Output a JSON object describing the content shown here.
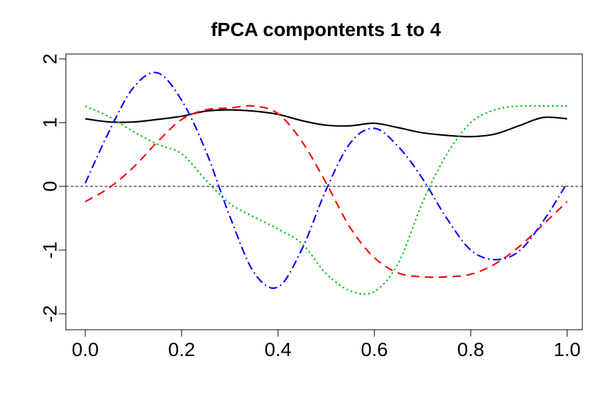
{
  "chart_data": {
    "type": "line",
    "title": "fPCA compontents 1 to 4",
    "xlabel": "",
    "ylabel": "",
    "xlim": [
      0.0,
      1.0
    ],
    "ylim": [
      -2,
      2
    ],
    "x_ticks": [
      "0.0",
      "0.2",
      "0.4",
      "0.6",
      "0.8",
      "1.0"
    ],
    "y_ticks": [
      "-2",
      "-1",
      "0",
      "1",
      "2"
    ],
    "reference_line": {
      "y": 0,
      "style": "dashed",
      "color": "#000000"
    },
    "grid": false,
    "legend": "none",
    "x": [
      0.0,
      0.05,
      0.1,
      0.15,
      0.2,
      0.25,
      0.3,
      0.35,
      0.4,
      0.45,
      0.5,
      0.55,
      0.6,
      0.65,
      0.7,
      0.75,
      0.8,
      0.85,
      0.9,
      0.95,
      1.0
    ],
    "series": [
      {
        "color": "#000000",
        "dash": "solid",
        "values": [
          1.06,
          1.01,
          1.01,
          1.05,
          1.1,
          1.18,
          1.2,
          1.18,
          1.13,
          1.03,
          0.96,
          0.95,
          0.99,
          0.92,
          0.84,
          0.8,
          0.78,
          0.82,
          0.95,
          1.08,
          1.06
        ]
      },
      {
        "color": "#ff0000",
        "dash": "dashed",
        "values": [
          -0.24,
          -0.02,
          0.3,
          0.7,
          1.05,
          1.2,
          1.23,
          1.26,
          1.14,
          0.7,
          0.05,
          -0.65,
          -1.12,
          -1.36,
          -1.42,
          -1.42,
          -1.38,
          -1.22,
          -0.95,
          -0.6,
          -0.24
        ]
      },
      {
        "color": "#00c000",
        "dash": "dotted",
        "values": [
          1.26,
          1.09,
          0.86,
          0.66,
          0.51,
          0.1,
          -0.27,
          -0.48,
          -0.67,
          -0.9,
          -1.37,
          -1.64,
          -1.65,
          -1.2,
          -0.25,
          0.5,
          1.0,
          1.2,
          1.26,
          1.26,
          1.26
        ]
      },
      {
        "color": "#0000ff",
        "dash": "dashdot",
        "values": [
          0.05,
          0.87,
          1.55,
          1.78,
          1.35,
          0.56,
          -0.47,
          -1.35,
          -1.58,
          -0.98,
          -0.05,
          0.68,
          0.91,
          0.62,
          0.12,
          -0.5,
          -1.0,
          -1.15,
          -1.02,
          -0.55,
          0.05
        ]
      }
    ]
  }
}
